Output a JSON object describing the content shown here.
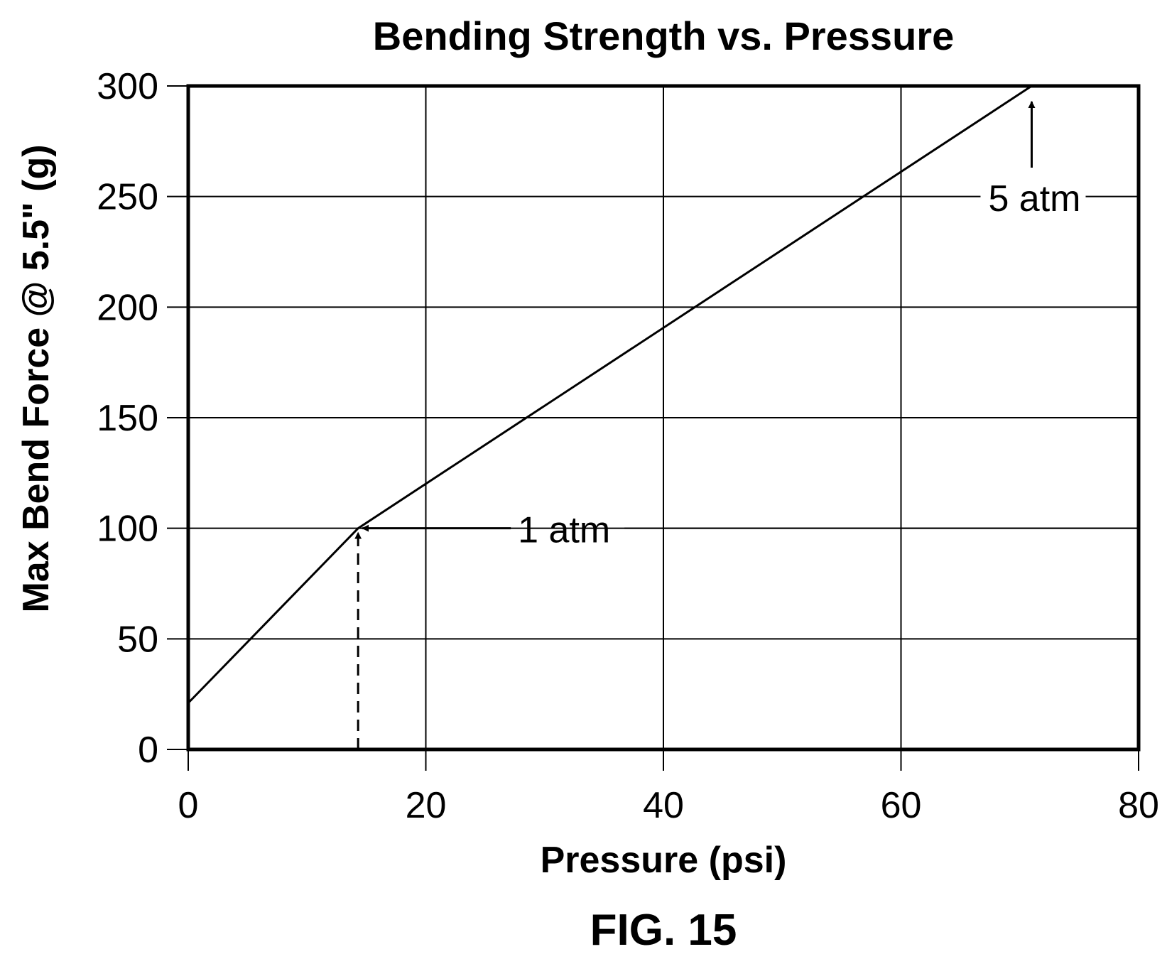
{
  "chart_data": {
    "type": "line",
    "title": "Bending Strength vs. Pressure",
    "xlabel": "Pressure (psi)",
    "ylabel": "Max Bend Force @ 5.5\" (g)",
    "xlim": [
      0,
      80
    ],
    "ylim": [
      0,
      300
    ],
    "x_ticks": [
      0,
      20,
      40,
      60,
      80
    ],
    "y_ticks": [
      0,
      50,
      100,
      150,
      200,
      250,
      300
    ],
    "grid": true,
    "series": [
      {
        "x": [
          0,
          14.3,
          71
        ],
        "y": [
          21,
          100,
          300
        ]
      }
    ],
    "annotations": [
      {
        "text": "1 atm",
        "x": 14.3,
        "y": 100,
        "style": "arrow-from-right",
        "dashed_drop": true
      },
      {
        "text": "5 atm",
        "x": 71,
        "y": 300,
        "style": "arrow-from-below"
      }
    ],
    "colors": {
      "line": "#000000",
      "grid": "#000000",
      "frame": "#000000"
    }
  },
  "caption": "FIG. 15"
}
